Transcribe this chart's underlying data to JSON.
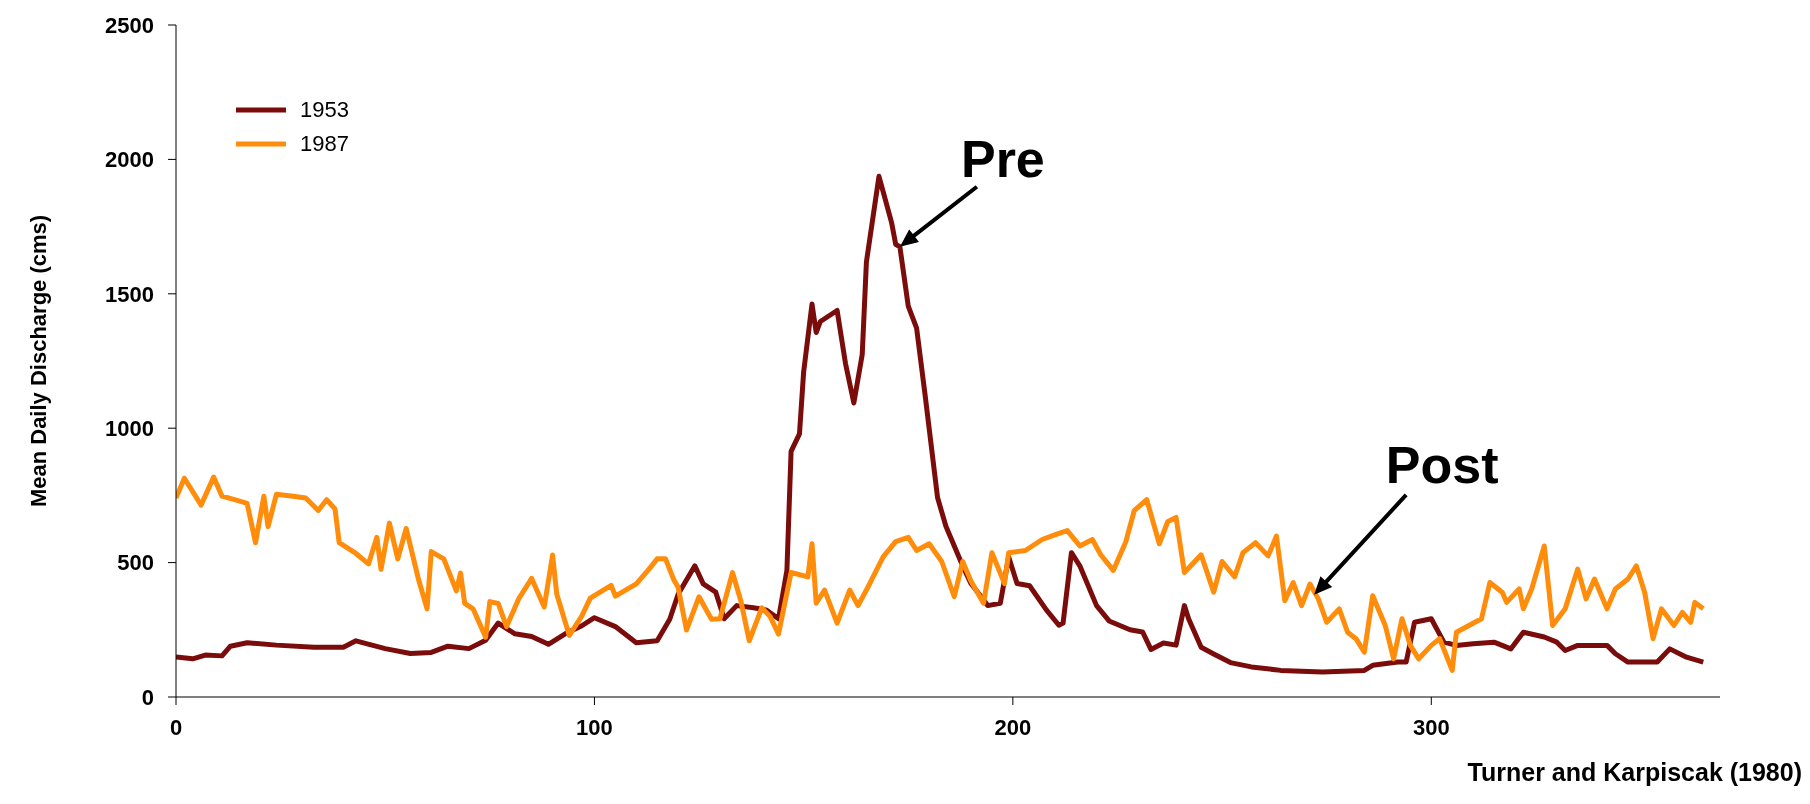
{
  "chart_data": {
    "type": "line",
    "xlabel": null,
    "ylabel": "Mean Daily Discharge (cms)",
    "xlim": [
      0,
      369
    ],
    "xticks": [
      0,
      100,
      200,
      300
    ],
    "ylim": [
      0,
      2500
    ],
    "yticks": [
      0,
      500,
      1000,
      1500,
      2000,
      2500
    ],
    "grid": false,
    "legend": "top left",
    "marker": "none",
    "line_style": "solid",
    "annotations": [
      {
        "text": "Pre",
        "x": 173,
        "y": 1675
      },
      {
        "text": "Post",
        "x": 272,
        "y": 380
      },
      "Turner and Karpiscak (1980)"
    ],
    "series": [
      {
        "name": "1953",
        "color": "#7b0c0c",
        "x": [
          0,
          4,
          7,
          11,
          13,
          17,
          24,
          33,
          40,
          43,
          50,
          56,
          61,
          65,
          70,
          74,
          77,
          81,
          85,
          89,
          93,
          97,
          100,
          105,
          110,
          115,
          118,
          120,
          124,
          126,
          129,
          131,
          134,
          138,
          141,
          144,
          146,
          147,
          149,
          150,
          152,
          153,
          154,
          158,
          160,
          162,
          164,
          165,
          168,
          169,
          171,
          172,
          173,
          175,
          177,
          179,
          182,
          184,
          188,
          190,
          194,
          197,
          199,
          201,
          204,
          208,
          211,
          212,
          214,
          216,
          220,
          223,
          228,
          231,
          233,
          236,
          239,
          241,
          242,
          245,
          248,
          252,
          257,
          264,
          274,
          284,
          286,
          292,
          294,
          296,
          300,
          303,
          306,
          310,
          315,
          319,
          322,
          327,
          330,
          332,
          335,
          342,
          344,
          347,
          354,
          357,
          361,
          365
        ],
        "values": [
          149,
          142,
          156,
          153,
          189,
          202,
          193,
          185,
          185,
          209,
          180,
          162,
          166,
          189,
          180,
          211,
          275,
          235,
          225,
          196,
          235,
          265,
          295,
          262,
          202,
          209,
          289,
          382,
          488,
          421,
          390,
          291,
          340,
          332,
          324,
          291,
          471,
          914,
          979,
          1209,
          1462,
          1356,
          1397,
          1438,
          1241,
          1094,
          1274,
          1618,
          1937,
          1880,
          1766,
          1684,
          1675,
          1454,
          1372,
          1127,
          742,
          635,
          488,
          422,
          340,
          349,
          521,
          422,
          414,
          324,
          267,
          275,
          537,
          488,
          340,
          283,
          250,
          242,
          177,
          201,
          193,
          340,
          291,
          185,
          160,
          128,
          112,
          99,
          93,
          99,
          118,
          130,
          130,
          278,
          291,
          204,
          192,
          198,
          204,
          179,
          241,
          223,
          204,
          173,
          192,
          192,
          161,
          130,
          130,
          179,
          148,
          130
        ]
      },
      {
        "name": "1987",
        "color": "#ff8c0a",
        "x": [
          0,
          2,
          6,
          9,
          11,
          14,
          17,
          19,
          21,
          22,
          24,
          28,
          31,
          34,
          36,
          38,
          39,
          43,
          46,
          48,
          49,
          51,
          53,
          55,
          58,
          60,
          61,
          64,
          67,
          68,
          69,
          71,
          74,
          75,
          77,
          79,
          82,
          85,
          88,
          90,
          91,
          94,
          97,
          99,
          104,
          105,
          110,
          113,
          115,
          117,
          119,
          120,
          122,
          125,
          127,
          128,
          130,
          133,
          135,
          137,
          140,
          142,
          144,
          147,
          151,
          152,
          153,
          155,
          158,
          161,
          163,
          165,
          169,
          172,
          175,
          177,
          180,
          183,
          186,
          188,
          190,
          193,
          195,
          198,
          199,
          203,
          207,
          210,
          213,
          216,
          219,
          221,
          224,
          227,
          229,
          232,
          235,
          237,
          239,
          241,
          245,
          248,
          250,
          253,
          255,
          258,
          261,
          263,
          265,
          267,
          269,
          271,
          273,
          275,
          278,
          280,
          282,
          284,
          286,
          289,
          291,
          293,
          295,
          297,
          300,
          302,
          305,
          306,
          309,
          312,
          314,
          317,
          318,
          321,
          322,
          324,
          327,
          329,
          332,
          335,
          337,
          339,
          342,
          344,
          347,
          349,
          351,
          353,
          355,
          358,
          360,
          362,
          363,
          365
        ],
        "values": [
          740,
          814,
          714,
          818,
          747,
          734,
          720,
          574,
          747,
          634,
          754,
          747,
          740,
          694,
          734,
          700,
          574,
          534,
          495,
          594,
          475,
          647,
          514,
          627,
          435,
          328,
          541,
          514,
          395,
          461,
          348,
          328,
          222,
          355,
          348,
          262,
          368,
          441,
          335,
          528,
          382,
          229,
          302,
          368,
          415,
          375,
          421,
          475,
          514,
          514,
          435,
          408,
          249,
          373,
          316,
          289,
          291,
          463,
          357,
          209,
          332,
          299,
          234,
          463,
          447,
          570,
          349,
          398,
          275,
          398,
          340,
          398,
          521,
          578,
          594,
          545,
          570,
          504,
          373,
          504,
          431,
          349,
          537,
          422,
          537,
          545,
          586,
          603,
          619,
          562,
          586,
          529,
          471,
          578,
          693,
          734,
          570,
          652,
          668,
          463,
          529,
          390,
          504,
          447,
          537,
          574,
          525,
          599,
          358,
          426,
          340,
          420,
          365,
          278,
          328,
          241,
          217,
          167,
          377,
          266,
          142,
          291,
          192,
          142,
          192,
          217,
          99,
          241,
          266,
          291,
          426,
          389,
          352,
          402,
          328,
          402,
          562,
          266,
          328,
          476,
          365,
          439,
          328,
          402,
          439,
          488,
          389,
          217,
          328,
          266,
          315,
          278,
          352,
          328
        ]
      }
    ]
  }
}
